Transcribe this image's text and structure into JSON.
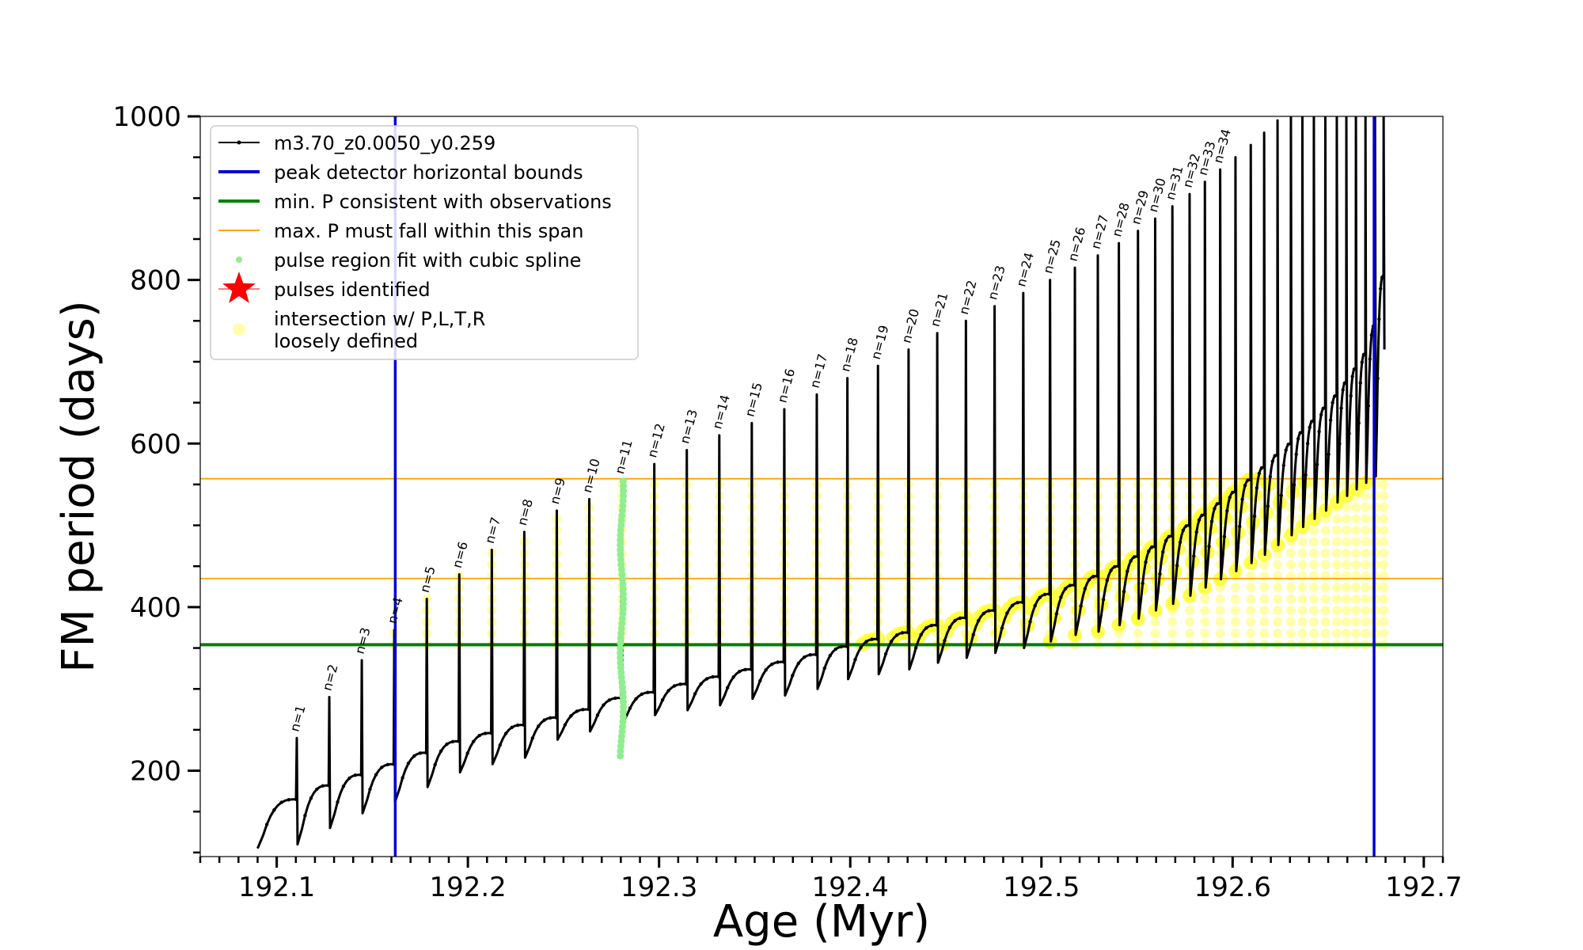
{
  "chart_data": {
    "type": "line",
    "xlabel": "Age (Myr)",
    "ylabel": "FM period (days)",
    "xlim": [
      192.06,
      192.71
    ],
    "ylim": [
      95,
      1000
    ],
    "x_ticks": [
      192.1,
      192.2,
      192.3,
      192.4,
      192.5,
      192.6,
      192.7
    ],
    "x_tick_labels": [
      "192.1",
      "192.2",
      "192.3",
      "192.4",
      "192.5",
      "192.6",
      "192.7"
    ],
    "y_ticks": [
      200,
      400,
      600,
      800,
      1000
    ],
    "y_tick_labels": [
      "200",
      "400",
      "600",
      "800",
      "1000"
    ],
    "grid": false,
    "legend_placement": "top-left",
    "legend": [
      {
        "label": "m3.70_z0.0050_y0.259",
        "style": "line-marker",
        "color": "#000000"
      },
      {
        "label": "peak detector horizontal bounds",
        "style": "line",
        "color": "#0000cc"
      },
      {
        "label": "min. P consistent with observations",
        "style": "line",
        "color": "#008000"
      },
      {
        "label": "max. P must fall within this span",
        "style": "thin-line",
        "color": "#ffa500"
      },
      {
        "label": "pulse region fit with cubic spline",
        "style": "dot",
        "color": "#90ee90"
      },
      {
        "label": "pulses identified",
        "style": "star",
        "color": "#ff0000"
      },
      {
        "label": "intersection w/ P,L,T,R",
        "label2": "loosely defined",
        "style": "circle",
        "color": "#ffff99"
      }
    ],
    "vertical_lines": [
      192.162,
      192.674
    ],
    "min_period_line": 354,
    "max_period_span": [
      435,
      557
    ],
    "series": [
      {
        "name": "m3.70_z0.0050_y0.259",
        "color": "#000000",
        "start_age": 192.09,
        "start_period": 105,
        "pulse_ages": [
          192.1105,
          192.1275,
          192.1445,
          192.1615,
          192.1785,
          192.1955,
          192.2125,
          192.2295,
          192.2465,
          192.2635,
          192.2805,
          192.2975,
          192.3145,
          192.3315,
          192.3485,
          192.3655,
          192.3825,
          192.3985,
          192.4145,
          192.4305,
          192.4455,
          192.4605,
          192.4755,
          192.4905,
          192.5045,
          192.5175,
          192.5295,
          192.5405,
          192.5505,
          192.5595,
          192.5685,
          192.5775,
          192.5855,
          192.5935,
          192.6015,
          192.6095,
          192.6165,
          192.6235,
          192.6305,
          192.6365,
          192.6425,
          192.6485,
          192.6545,
          192.6595,
          192.6645,
          192.6695,
          192.6745,
          192.679
        ],
        "pulse_peaks": [
          240,
          290,
          335,
          372,
          410,
          440,
          470,
          492,
          518,
          532,
          555,
          575,
          592,
          610,
          625,
          642,
          660,
          680,
          695,
          715,
          735,
          750,
          768,
          784,
          800,
          815,
          830,
          845,
          860,
          875,
          890,
          905,
          920,
          935,
          950,
          965,
          980,
          995,
          1000,
          1000,
          1000,
          1000,
          1000,
          1000,
          1000,
          1000,
          1000,
          1000
        ],
        "pulse_baselines": [
          165,
          182,
          195,
          208,
          222,
          236,
          246,
          256,
          265,
          275,
          289,
          296,
          306,
          315,
          324,
          333,
          342,
          352,
          361,
          369,
          378,
          387,
          396,
          406,
          416,
          427,
          438,
          450,
          462,
          474,
          487,
          500,
          513,
          527,
          541,
          556,
          571,
          586,
          600,
          614,
          628,
          644,
          659,
          675,
          692,
          710,
          745,
          805
        ],
        "pulse_dips": [
          110,
          130,
          148,
          162,
          180,
          198,
          208,
          216,
          238,
          248,
          258,
          268,
          274,
          280,
          288,
          292,
          300,
          312,
          318,
          324,
          332,
          338,
          344,
          350,
          358,
          366,
          370,
          378,
          386,
          396,
          404,
          414,
          424,
          434,
          444,
          454,
          464,
          476,
          488,
          498,
          508,
          518,
          528,
          536,
          544,
          552,
          560,
          715
        ]
      }
    ],
    "pulse_labels": [
      {
        "label": "n=1",
        "x": 192.1105,
        "y": 243
      },
      {
        "label": "n=2",
        "x": 192.1275,
        "y": 293
      },
      {
        "label": "n=3",
        "x": 192.1445,
        "y": 338
      },
      {
        "label": "n=4",
        "x": 192.1615,
        "y": 375
      },
      {
        "label": "n=5",
        "x": 192.1785,
        "y": 413
      },
      {
        "label": "n=6",
        "x": 192.1955,
        "y": 443
      },
      {
        "label": "n=7",
        "x": 192.2125,
        "y": 473
      },
      {
        "label": "n=8",
        "x": 192.2295,
        "y": 495
      },
      {
        "label": "n=9",
        "x": 192.2465,
        "y": 521
      },
      {
        "label": "n=10",
        "x": 192.2635,
        "y": 535
      },
      {
        "label": "n=11",
        "x": 192.2805,
        "y": 558
      },
      {
        "label": "n=12",
        "x": 192.2975,
        "y": 578
      },
      {
        "label": "n=13",
        "x": 192.3145,
        "y": 595
      },
      {
        "label": "n=14",
        "x": 192.3315,
        "y": 613
      },
      {
        "label": "n=15",
        "x": 192.3485,
        "y": 628
      },
      {
        "label": "n=16",
        "x": 192.3655,
        "y": 645
      },
      {
        "label": "n=17",
        "x": 192.3825,
        "y": 663
      },
      {
        "label": "n=18",
        "x": 192.3985,
        "y": 683
      },
      {
        "label": "n=19",
        "x": 192.4145,
        "y": 698
      },
      {
        "label": "n=20",
        "x": 192.4305,
        "y": 718
      },
      {
        "label": "n=21",
        "x": 192.4455,
        "y": 738
      },
      {
        "label": "n=22",
        "x": 192.4605,
        "y": 753
      },
      {
        "label": "n=23",
        "x": 192.4755,
        "y": 771
      },
      {
        "label": "n=24",
        "x": 192.4905,
        "y": 787
      },
      {
        "label": "n=25",
        "x": 192.5045,
        "y": 803
      },
      {
        "label": "n=26",
        "x": 192.5175,
        "y": 818
      },
      {
        "label": "n=27",
        "x": 192.5295,
        "y": 833
      },
      {
        "label": "n=28",
        "x": 192.5405,
        "y": 848
      },
      {
        "label": "n=29",
        "x": 192.5505,
        "y": 863
      },
      {
        "label": "n=30",
        "x": 192.5595,
        "y": 878
      },
      {
        "label": "n=31",
        "x": 192.5685,
        "y": 893
      },
      {
        "label": "n=32",
        "x": 192.5775,
        "y": 908
      },
      {
        "label": "n=33",
        "x": 192.5855,
        "y": 923
      },
      {
        "label": "n=34",
        "x": 192.5935,
        "y": 938
      }
    ],
    "spline_points": {
      "x": 192.2805,
      "y_range": [
        218,
        556
      ],
      "color": "#90ee90"
    },
    "intersection_points": {
      "color": "#ffff66"
    }
  }
}
